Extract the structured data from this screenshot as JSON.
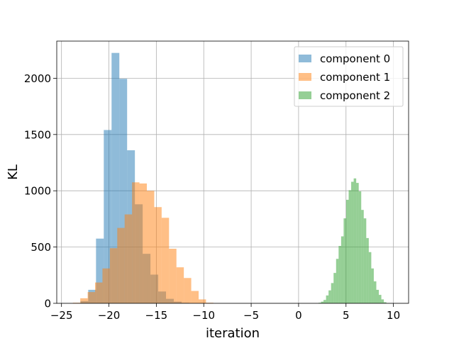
{
  "chart_data": {
    "type": "histogram",
    "title": "",
    "xlabel": "iteration",
    "ylabel": "KL",
    "xlim": [
      -25.5,
      11.6
    ],
    "ylim": [
      0,
      2330
    ],
    "xticks": [
      -25,
      -20,
      -15,
      -10,
      -5,
      0,
      5,
      10
    ],
    "xtick_labels": [
      "−25",
      "−20",
      "−15",
      "−10",
      "−5",
      "0",
      "5",
      "10"
    ],
    "yticks": [
      0,
      500,
      1000,
      1500,
      2000
    ],
    "ytick_labels": [
      "0",
      "500",
      "1000",
      "1500",
      "2000"
    ],
    "grid": true,
    "legend_position": "upper right",
    "alpha": 0.5,
    "series": [
      {
        "name": "component 0",
        "color": "#1f77b4",
        "bin_width": 0.82,
        "bins": [
          {
            "x0": -23.0,
            "count": 20
          },
          {
            "x0": -22.18,
            "count": 120
          },
          {
            "x0": -21.36,
            "count": 575
          },
          {
            "x0": -20.54,
            "count": 1540
          },
          {
            "x0": -19.72,
            "count": 2225
          },
          {
            "x0": -18.9,
            "count": 1995
          },
          {
            "x0": -18.08,
            "count": 1360
          },
          {
            "x0": -17.26,
            "count": 880
          },
          {
            "x0": -16.44,
            "count": 440
          },
          {
            "x0": -15.62,
            "count": 255
          },
          {
            "x0": -14.8,
            "count": 105
          },
          {
            "x0": -13.98,
            "count": 40
          },
          {
            "x0": -13.16,
            "count": 15
          },
          {
            "x0": -12.34,
            "count": 5
          }
        ]
      },
      {
        "name": "component 1",
        "color": "#ff7f0e",
        "bin_width": 0.78,
        "bins": [
          {
            "x0": -23.8,
            "count": 5
          },
          {
            "x0": -23.02,
            "count": 45
          },
          {
            "x0": -22.24,
            "count": 100
          },
          {
            "x0": -21.46,
            "count": 185
          },
          {
            "x0": -20.68,
            "count": 310
          },
          {
            "x0": -19.9,
            "count": 490
          },
          {
            "x0": -19.12,
            "count": 670
          },
          {
            "x0": -18.34,
            "count": 790
          },
          {
            "x0": -17.56,
            "count": 1075
          },
          {
            "x0": -16.78,
            "count": 1065
          },
          {
            "x0": -16.0,
            "count": 1000
          },
          {
            "x0": -15.22,
            "count": 855
          },
          {
            "x0": -14.44,
            "count": 760
          },
          {
            "x0": -13.66,
            "count": 485
          },
          {
            "x0": -12.88,
            "count": 320
          },
          {
            "x0": -12.1,
            "count": 225
          },
          {
            "x0": -11.32,
            "count": 110
          },
          {
            "x0": -10.54,
            "count": 35
          },
          {
            "x0": -9.76,
            "count": 5
          }
        ]
      },
      {
        "name": "component 2",
        "color": "#2ca02c",
        "bin_width": 0.265,
        "bins": [
          {
            "x0": 2.1,
            "count": 5
          },
          {
            "x0": 2.365,
            "count": 15
          },
          {
            "x0": 2.63,
            "count": 30
          },
          {
            "x0": 2.895,
            "count": 70
          },
          {
            "x0": 3.16,
            "count": 115
          },
          {
            "x0": 3.425,
            "count": 180
          },
          {
            "x0": 3.69,
            "count": 270
          },
          {
            "x0": 3.955,
            "count": 395
          },
          {
            "x0": 4.22,
            "count": 510
          },
          {
            "x0": 4.485,
            "count": 595
          },
          {
            "x0": 4.75,
            "count": 755
          },
          {
            "x0": 5.015,
            "count": 920
          },
          {
            "x0": 5.28,
            "count": 1005
          },
          {
            "x0": 5.545,
            "count": 1080
          },
          {
            "x0": 5.81,
            "count": 1110
          },
          {
            "x0": 6.075,
            "count": 1070
          },
          {
            "x0": 6.34,
            "count": 995
          },
          {
            "x0": 6.605,
            "count": 830
          },
          {
            "x0": 6.87,
            "count": 755
          },
          {
            "x0": 7.135,
            "count": 580
          },
          {
            "x0": 7.4,
            "count": 455
          },
          {
            "x0": 7.665,
            "count": 310
          },
          {
            "x0": 7.93,
            "count": 195
          },
          {
            "x0": 8.195,
            "count": 120
          },
          {
            "x0": 8.46,
            "count": 75
          },
          {
            "x0": 8.725,
            "count": 35
          },
          {
            "x0": 8.99,
            "count": 10
          }
        ]
      }
    ]
  }
}
